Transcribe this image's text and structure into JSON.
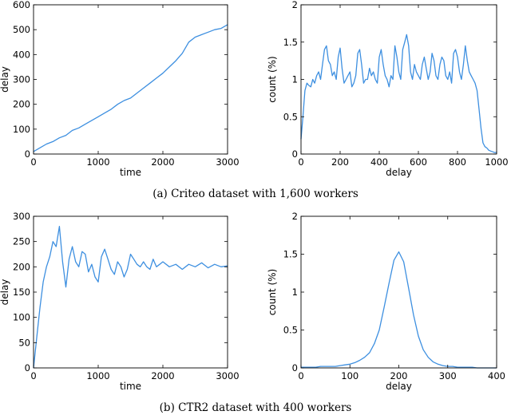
{
  "colors": {
    "series": "#3d8fe0",
    "axis": "#000000"
  },
  "captions": {
    "a": "(a) Criteo dataset with 1,600 workers",
    "b": "(b) CTR2 dataset with 400 workers"
  },
  "chart_data": [
    {
      "id": "a-left",
      "type": "line",
      "xlabel": "time",
      "ylabel": "delay",
      "xlim": [
        0,
        3000
      ],
      "ylim": [
        0,
        600
      ],
      "xticks": [
        0,
        1000,
        2000,
        3000
      ],
      "yticks": [
        0,
        100,
        200,
        300,
        400,
        500,
        600
      ],
      "series": [
        {
          "x": [
            0,
            100,
            200,
            300,
            400,
            500,
            600,
            700,
            800,
            900,
            1000,
            1100,
            1200,
            1300,
            1400,
            1500,
            1600,
            1700,
            1800,
            1900,
            2000,
            2100,
            2200,
            2300,
            2400,
            2500,
            2600,
            2700,
            2800,
            2900,
            3000
          ],
          "values": [
            10,
            25,
            40,
            50,
            65,
            75,
            95,
            105,
            120,
            135,
            150,
            165,
            180,
            200,
            215,
            225,
            245,
            265,
            285,
            305,
            325,
            350,
            375,
            405,
            450,
            470,
            480,
            490,
            500,
            505,
            520
          ]
        }
      ]
    },
    {
      "id": "a-right",
      "type": "line",
      "xlabel": "delay",
      "ylabel": "count (%)",
      "xlim": [
        0,
        1000
      ],
      "ylim": [
        0,
        2
      ],
      "xticks": [
        0,
        200,
        400,
        600,
        800,
        1000
      ],
      "yticks": [
        0,
        0.5,
        1,
        1.5,
        2
      ],
      "series": [
        {
          "x": [
            0,
            10,
            20,
            30,
            40,
            50,
            60,
            70,
            80,
            90,
            100,
            110,
            120,
            130,
            140,
            150,
            160,
            170,
            180,
            190,
            200,
            210,
            220,
            230,
            240,
            250,
            260,
            270,
            280,
            290,
            300,
            310,
            320,
            330,
            340,
            350,
            360,
            370,
            380,
            390,
            400,
            410,
            420,
            430,
            440,
            450,
            460,
            470,
            480,
            490,
            500,
            510,
            520,
            530,
            540,
            550,
            560,
            570,
            580,
            590,
            600,
            610,
            620,
            630,
            640,
            650,
            660,
            670,
            680,
            690,
            700,
            710,
            720,
            730,
            740,
            750,
            760,
            770,
            780,
            790,
            800,
            810,
            820,
            830,
            840,
            850,
            860,
            870,
            880,
            890,
            900,
            910,
            920,
            930,
            940,
            950,
            960,
            970,
            980,
            990,
            1000
          ],
          "values": [
            0.2,
            0.5,
            0.85,
            0.95,
            0.92,
            0.9,
            1.0,
            0.95,
            1.05,
            1.1,
            1.0,
            1.2,
            1.4,
            1.45,
            1.25,
            1.2,
            1.05,
            1.1,
            1.0,
            1.3,
            1.42,
            1.15,
            0.95,
            1.0,
            1.05,
            1.1,
            0.9,
            0.95,
            1.05,
            1.35,
            1.4,
            1.2,
            0.95,
            1.0,
            1.0,
            1.15,
            1.05,
            1.1,
            1.0,
            0.95,
            1.3,
            1.4,
            1.2,
            1.05,
            1.0,
            0.9,
            1.05,
            1.0,
            1.45,
            1.3,
            1.1,
            1.0,
            1.4,
            1.5,
            1.6,
            1.45,
            1.1,
            1.0,
            1.2,
            1.1,
            1.05,
            1.0,
            1.2,
            1.3,
            1.15,
            1.0,
            1.1,
            1.35,
            1.25,
            1.05,
            1.0,
            1.2,
            1.3,
            1.25,
            1.05,
            1.0,
            1.1,
            0.95,
            1.35,
            1.4,
            1.3,
            1.1,
            1.0,
            1.2,
            1.45,
            1.25,
            1.1,
            1.05,
            1.0,
            0.95,
            0.85,
            0.6,
            0.35,
            0.15,
            0.1,
            0.08,
            0.05,
            0.04,
            0.03,
            0.02,
            0.02
          ]
        }
      ]
    },
    {
      "id": "b-left",
      "type": "line",
      "xlabel": "time",
      "ylabel": "delay",
      "xlim": [
        0,
        3000
      ],
      "ylim": [
        0,
        300
      ],
      "xticks": [
        0,
        1000,
        2000,
        3000
      ],
      "yticks": [
        0,
        50,
        100,
        150,
        200,
        250,
        300
      ],
      "series": [
        {
          "x": [
            0,
            50,
            100,
            150,
            200,
            250,
            300,
            350,
            400,
            450,
            500,
            550,
            600,
            650,
            700,
            750,
            800,
            850,
            900,
            950,
            1000,
            1050,
            1100,
            1150,
            1200,
            1250,
            1300,
            1350,
            1400,
            1450,
            1500,
            1550,
            1600,
            1650,
            1700,
            1750,
            1800,
            1850,
            1900,
            1950,
            2000,
            2100,
            2200,
            2300,
            2400,
            2500,
            2600,
            2700,
            2800,
            2900,
            3000
          ],
          "values": [
            0,
            60,
            120,
            170,
            200,
            220,
            250,
            240,
            280,
            210,
            160,
            215,
            240,
            210,
            200,
            230,
            225,
            190,
            205,
            180,
            170,
            220,
            235,
            215,
            195,
            185,
            210,
            200,
            180,
            195,
            225,
            215,
            205,
            200,
            210,
            200,
            195,
            215,
            200,
            205,
            210,
            200,
            205,
            195,
            205,
            200,
            208,
            198,
            205,
            200,
            202
          ]
        }
      ]
    },
    {
      "id": "b-right",
      "type": "line",
      "xlabel": "delay",
      "ylabel": "count (%)",
      "xlim": [
        0,
        400
      ],
      "ylim": [
        0,
        2
      ],
      "xticks": [
        0,
        100,
        200,
        300,
        400
      ],
      "yticks": [
        0,
        0.5,
        1,
        1.5,
        2
      ],
      "series": [
        {
          "x": [
            0,
            10,
            20,
            30,
            40,
            50,
            60,
            70,
            80,
            90,
            100,
            110,
            120,
            130,
            140,
            150,
            160,
            170,
            180,
            190,
            200,
            210,
            220,
            230,
            240,
            250,
            260,
            270,
            280,
            290,
            300,
            310,
            320,
            330,
            340,
            350,
            360,
            370,
            380,
            390,
            400
          ],
          "values": [
            0.01,
            0.01,
            0.01,
            0.01,
            0.02,
            0.02,
            0.02,
            0.02,
            0.03,
            0.04,
            0.05,
            0.07,
            0.1,
            0.14,
            0.2,
            0.32,
            0.5,
            0.8,
            1.12,
            1.42,
            1.53,
            1.4,
            1.05,
            0.7,
            0.42,
            0.24,
            0.14,
            0.08,
            0.05,
            0.03,
            0.02,
            0.02,
            0.01,
            0.01,
            0.01,
            0.01,
            0.0,
            0.0,
            0.0,
            0.0,
            0.0
          ]
        }
      ]
    }
  ]
}
